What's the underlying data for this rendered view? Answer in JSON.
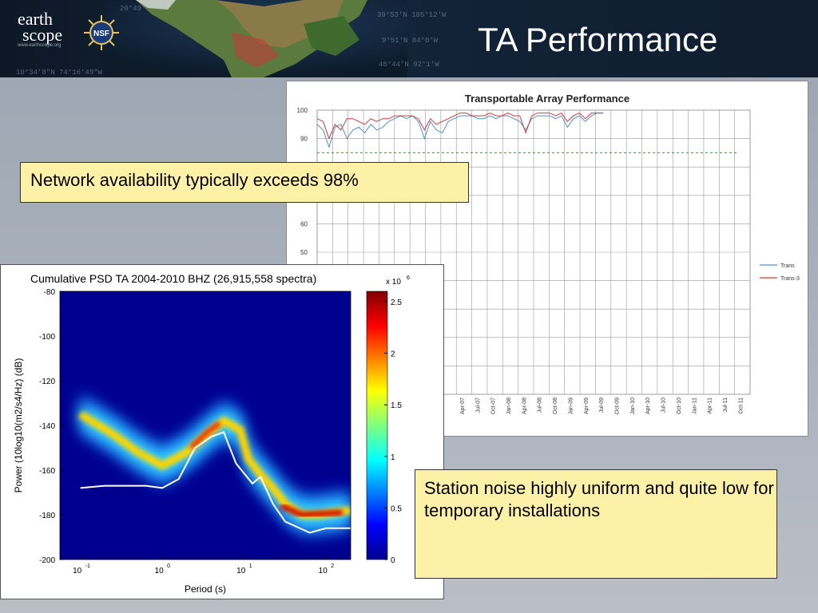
{
  "header": {
    "logo_line1": "earth",
    "logo_line2": "scope",
    "logo_sub": "www.earthscope.org",
    "nsf_label": "NSF",
    "coords": [
      "20°49'",
      "10°34'8\"N 74°16'49\"W",
      "39°53'N 105°12'W",
      "9°51'N 84°0'W",
      "46°44'N 92°1'W"
    ]
  },
  "title": "TA Performance",
  "callouts": {
    "network": "Network availability typically exceeds 98%",
    "noise": "Station noise highly uniform and quite low for temporary installations"
  },
  "colors": {
    "callout_bg": "#fdf1a8",
    "trans": "#4f8fd0",
    "trans3": "#d23a3a",
    "threshold": "#2a9d3a"
  },
  "chart_data": [
    {
      "type": "line",
      "title": "Transportable Array Performance",
      "ylim": [
        0,
        100
      ],
      "y_ticks": [
        "100",
        "90",
        "60",
        "50"
      ],
      "grid": true,
      "legend": "right",
      "threshold": 85,
      "x_ticks": [
        "Apr-07",
        "Jul-07",
        "Oct-07",
        "Jan-08",
        "Apr-08",
        "Jul-08",
        "Oct-08",
        "Jan-09",
        "Apr-09",
        "Jul-09",
        "Oct-09",
        "Jan-10",
        "Apr-10",
        "Jul-10",
        "Oct-10",
        "Jan-11",
        "Apr-11",
        "Jul-11",
        "Oct-11"
      ],
      "series": [
        {
          "name": "Trans",
          "values": [
            95,
            93,
            87,
            94,
            95,
            90,
            93,
            94,
            92,
            95,
            93,
            94,
            96,
            97,
            98,
            97,
            98,
            96,
            90,
            96,
            93,
            92,
            96,
            97,
            98,
            98,
            98,
            97,
            97,
            98,
            97,
            98,
            98,
            97,
            96,
            93,
            97,
            98,
            98,
            98,
            97,
            98,
            94,
            97,
            98,
            96,
            98,
            99,
            99
          ]
        },
        {
          "name": "Trans-3",
          "values": [
            97,
            96,
            90,
            95,
            93,
            97,
            97,
            96,
            95,
            97,
            96,
            97,
            97,
            98,
            98,
            98,
            98,
            97,
            93,
            97,
            95,
            96,
            97,
            98,
            99,
            99,
            98,
            98,
            98,
            99,
            98,
            98,
            99,
            98,
            98,
            92,
            98,
            99,
            99,
            99,
            98,
            99,
            96,
            98,
            99,
            97,
            99,
            99,
            99
          ]
        }
      ]
    },
    {
      "type": "heatmap",
      "title": "Cumulative PSD TA 2004-2010 BHZ (26,915,558 spectra)",
      "xlabel": "Period (s)",
      "ylabel": "Power (10log10(m2/s4/Hz) (dB)",
      "x_ticks": [
        "10",
        "10",
        "10",
        "10"
      ],
      "x_tick_exp": [
        "-1",
        "0",
        "1",
        "2"
      ],
      "y_ticks": [
        "-80",
        "-100",
        "-120",
        "-140",
        "-160",
        "-180",
        "-200"
      ],
      "ylim": [
        -200,
        -80
      ],
      "colorbar_multiplier": "x 10",
      "colorbar_exp": "6",
      "colorbar_ticks": [
        "2.5",
        "2",
        "1.5",
        "1",
        "0.5",
        "0"
      ],
      "ridge": {
        "log10_period": [
          -1.0,
          -0.6,
          -0.3,
          0.0,
          0.3,
          0.55,
          0.75,
          0.95,
          1.05,
          1.2,
          1.35,
          1.5,
          1.7,
          1.9,
          2.1,
          2.3
        ],
        "power_db": [
          -135,
          -144,
          -152,
          -158,
          -152,
          -144,
          -138,
          -142,
          -155,
          -162,
          -168,
          -175,
          -180,
          -180,
          -179,
          -178
        ]
      },
      "noise_model": {
        "log10_period": [
          -1.0,
          -0.7,
          -0.2,
          0.0,
          0.2,
          0.4,
          0.6,
          0.75,
          0.9,
          1.1,
          1.2,
          1.35,
          1.5,
          1.8,
          2.0,
          2.3
        ],
        "power_db": [
          -168,
          -167,
          -167,
          -168,
          -164,
          -150,
          -145,
          -143,
          -157,
          -166,
          -163,
          -175,
          -183,
          -188,
          -186,
          -186
        ]
      }
    }
  ]
}
